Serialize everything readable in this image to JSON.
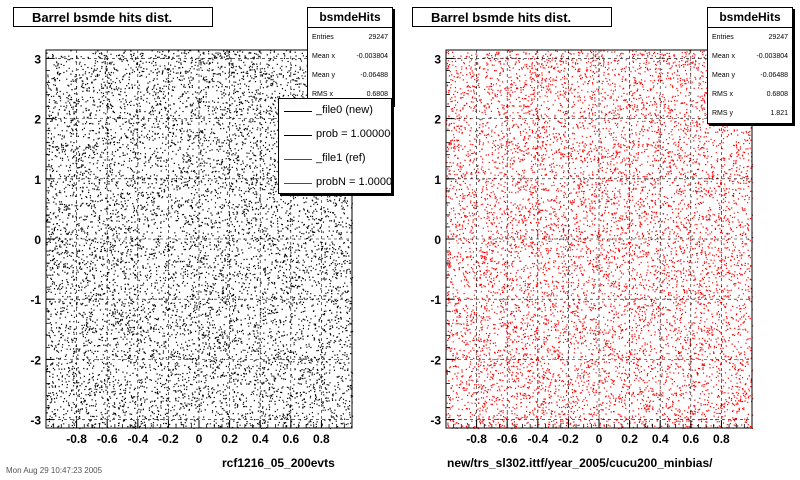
{
  "chart_data": [
    {
      "type": "scatter",
      "title": "Barrel bsmde hits dist.",
      "xlabel": "rcf1216_05_200evts",
      "xlim": [
        -1.0,
        1.0
      ],
      "ylim": [
        -3.14,
        3.14
      ],
      "xticks": [
        "-0.8",
        "-0.6",
        "-0.4",
        "-0.2",
        "0",
        "0.2",
        "0.4",
        "0.6",
        "0.8"
      ],
      "yticks": [
        "-3",
        "-2",
        "-1",
        "0",
        "1",
        "2",
        "3"
      ],
      "grid": true,
      "color": "#000000",
      "stats": {
        "name": "bsmdeHits",
        "rows": [
          {
            "label": "Entries",
            "value": "29247"
          },
          {
            "label": "Mean x",
            "value": "-0.003804"
          },
          {
            "label": "Mean y",
            "value": "-0.06488"
          },
          {
            "label": "RMS x",
            "value": "0.6808"
          }
        ]
      },
      "legend": {
        "placement": "top-right",
        "entries": [
          {
            "text": "_file0 (new)",
            "color": "#000000"
          },
          {
            "text": "prob = 1.000000",
            "color": "#000000"
          },
          {
            "text": "_file1 (ref)",
            "color": "#ff0000"
          },
          {
            "text": "probN = 1.000000",
            "color": "#ff0000"
          }
        ]
      }
    },
    {
      "type": "scatter",
      "title": "Barrel bsmde hits dist.",
      "xlabel": "new/trs_sl302.ittf/year_2005/cucu200_minbias/",
      "xlim": [
        -1.0,
        1.0
      ],
      "ylim": [
        -3.14,
        3.14
      ],
      "xticks": [
        "-0.8",
        "-0.6",
        "-0.4",
        "-0.2",
        "0",
        "0.2",
        "0.4",
        "0.6",
        "0.8"
      ],
      "yticks": [
        "-3",
        "-2",
        "-1",
        "0",
        "1",
        "2",
        "3"
      ],
      "grid": true,
      "color": "#ff0000",
      "stats": {
        "name": "bsmdeHits",
        "rows": [
          {
            "label": "Entries",
            "value": "29247"
          },
          {
            "label": "Mean x",
            "value": "-0.003804"
          },
          {
            "label": "Mean y",
            "value": "-0.06488"
          },
          {
            "label": "RMS x",
            "value": "0.6808"
          },
          {
            "label": "RMS y",
            "value": "1.821"
          }
        ]
      }
    }
  ],
  "footer": "Mon Aug 29 10:47:23 2005"
}
